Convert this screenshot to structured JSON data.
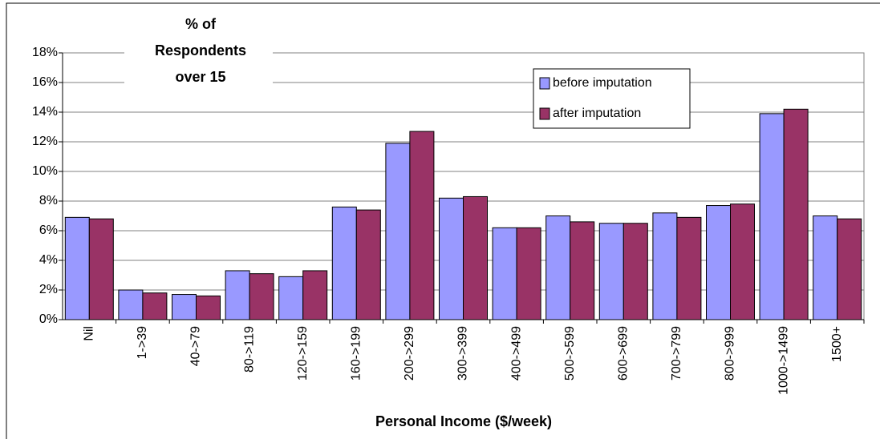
{
  "chart_data": {
    "type": "bar",
    "ylabel_lines": [
      "% of",
      "Respondents",
      "over 15"
    ],
    "xlabel": "Personal Income ($/week)",
    "categories": [
      "Nil",
      "1->39",
      "40->79",
      "80->119",
      "120->159",
      "160->199",
      "200->299",
      "300->399",
      "400->499",
      "500->599",
      "600->699",
      "700->799",
      "800->999",
      "1000->1499",
      "1500+"
    ],
    "series": [
      {
        "name": "before imputation",
        "color": "#9999ff",
        "values": [
          6.9,
          2.0,
          1.7,
          3.3,
          2.9,
          7.6,
          11.9,
          8.2,
          6.2,
          7.0,
          6.5,
          7.2,
          7.7,
          13.9,
          7.0
        ]
      },
      {
        "name": "after imputation",
        "color": "#993366",
        "values": [
          6.8,
          1.8,
          1.6,
          3.1,
          3.3,
          7.4,
          12.7,
          8.3,
          6.2,
          6.6,
          6.5,
          6.9,
          7.8,
          14.2,
          6.8
        ]
      }
    ],
    "ylim": [
      0,
      18
    ],
    "yticks": [
      {
        "value": 0,
        "label": "0%"
      },
      {
        "value": 2,
        "label": "2%"
      },
      {
        "value": 4,
        "label": "4%"
      },
      {
        "value": 6,
        "label": "6%"
      },
      {
        "value": 8,
        "label": "8%"
      },
      {
        "value": 10,
        "label": "10%"
      },
      {
        "value": 12,
        "label": "12%"
      },
      {
        "value": 14,
        "label": "14%"
      },
      {
        "value": 16,
        "label": "16%"
      },
      {
        "value": 18,
        "label": "18%"
      }
    ],
    "grid": true,
    "legend": "upper-right"
  }
}
